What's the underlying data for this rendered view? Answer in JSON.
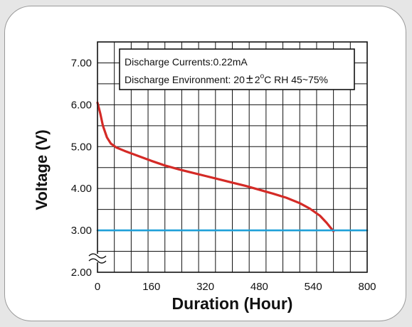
{
  "chart_data": {
    "type": "line",
    "xlabel": "Duration (Hour)",
    "ylabel": "Voltage (V)",
    "x_tick_labels": [
      "0",
      "160",
      "320",
      "480",
      "540",
      "800"
    ],
    "y_tick_labels": [
      "2.00",
      "3.00",
      "4.00",
      "5.00",
      "6.00",
      "7.00"
    ],
    "y_range": [
      2.0,
      7.5
    ],
    "x_range": [
      0,
      800
    ],
    "grid": true,
    "axis_break": "y",
    "legend_position": "top-right",
    "annotation": {
      "line1": "Discharge Currents:0.22mA",
      "line2_prefix": "Discharge Environment: 20",
      "line2_pm": "±",
      "line2_deg": "2",
      "line2_sup": "o",
      "line2_suffix": "C  RH 45~75%"
    },
    "series": [
      {
        "color": "#d42a26",
        "points": [
          [
            0,
            6.05
          ],
          [
            8,
            5.8
          ],
          [
            16,
            5.5
          ],
          [
            28,
            5.22
          ],
          [
            40,
            5.07
          ],
          [
            56,
            4.98
          ],
          [
            80,
            4.9
          ],
          [
            120,
            4.78
          ],
          [
            160,
            4.66
          ],
          [
            200,
            4.55
          ],
          [
            240,
            4.46
          ],
          [
            280,
            4.38
          ],
          [
            320,
            4.3
          ],
          [
            360,
            4.22
          ],
          [
            400,
            4.14
          ],
          [
            440,
            4.06
          ],
          [
            480,
            3.97
          ],
          [
            520,
            3.88
          ],
          [
            560,
            3.78
          ],
          [
            600,
            3.65
          ],
          [
            630,
            3.52
          ],
          [
            660,
            3.35
          ],
          [
            680,
            3.18
          ],
          [
            700,
            2.98
          ]
        ]
      },
      {
        "color": "#1fa0d8",
        "points": [
          [
            0,
            3.0
          ],
          [
            800,
            3.0
          ]
        ]
      }
    ]
  }
}
